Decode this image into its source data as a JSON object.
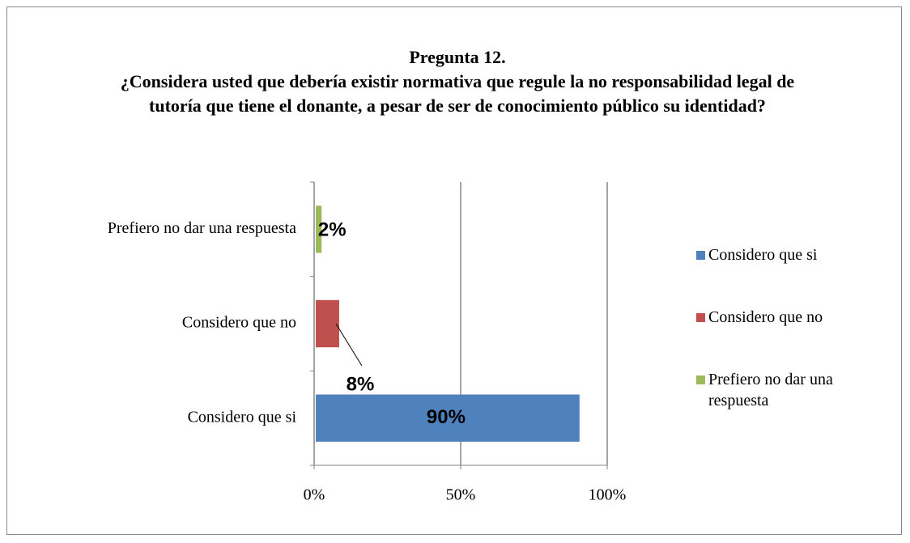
{
  "chart_data": {
    "type": "bar",
    "orientation": "horizontal",
    "title": "Pregunta 12.",
    "subtitle": "¿Considera usted que debería existir normativa que regule la no responsabilidad legal de tutoría que tiene el donante, a pesar de ser de conocimiento público su identidad?",
    "categories": [
      "Considero que si",
      "Considero que no",
      "Prefiero no dar una respuesta"
    ],
    "values": [
      90,
      8,
      2
    ],
    "value_labels": [
      "90%",
      "8%",
      "2%"
    ],
    "colors": [
      "#4f81bd",
      "#c0504d",
      "#9bbb59"
    ],
    "xlim": [
      0,
      100
    ],
    "xticks": [
      {
        "value": 0,
        "label": "0%"
      },
      {
        "value": 50,
        "label": "50%"
      },
      {
        "value": 100,
        "label": "100%"
      }
    ],
    "grid": true,
    "legend": "right"
  }
}
